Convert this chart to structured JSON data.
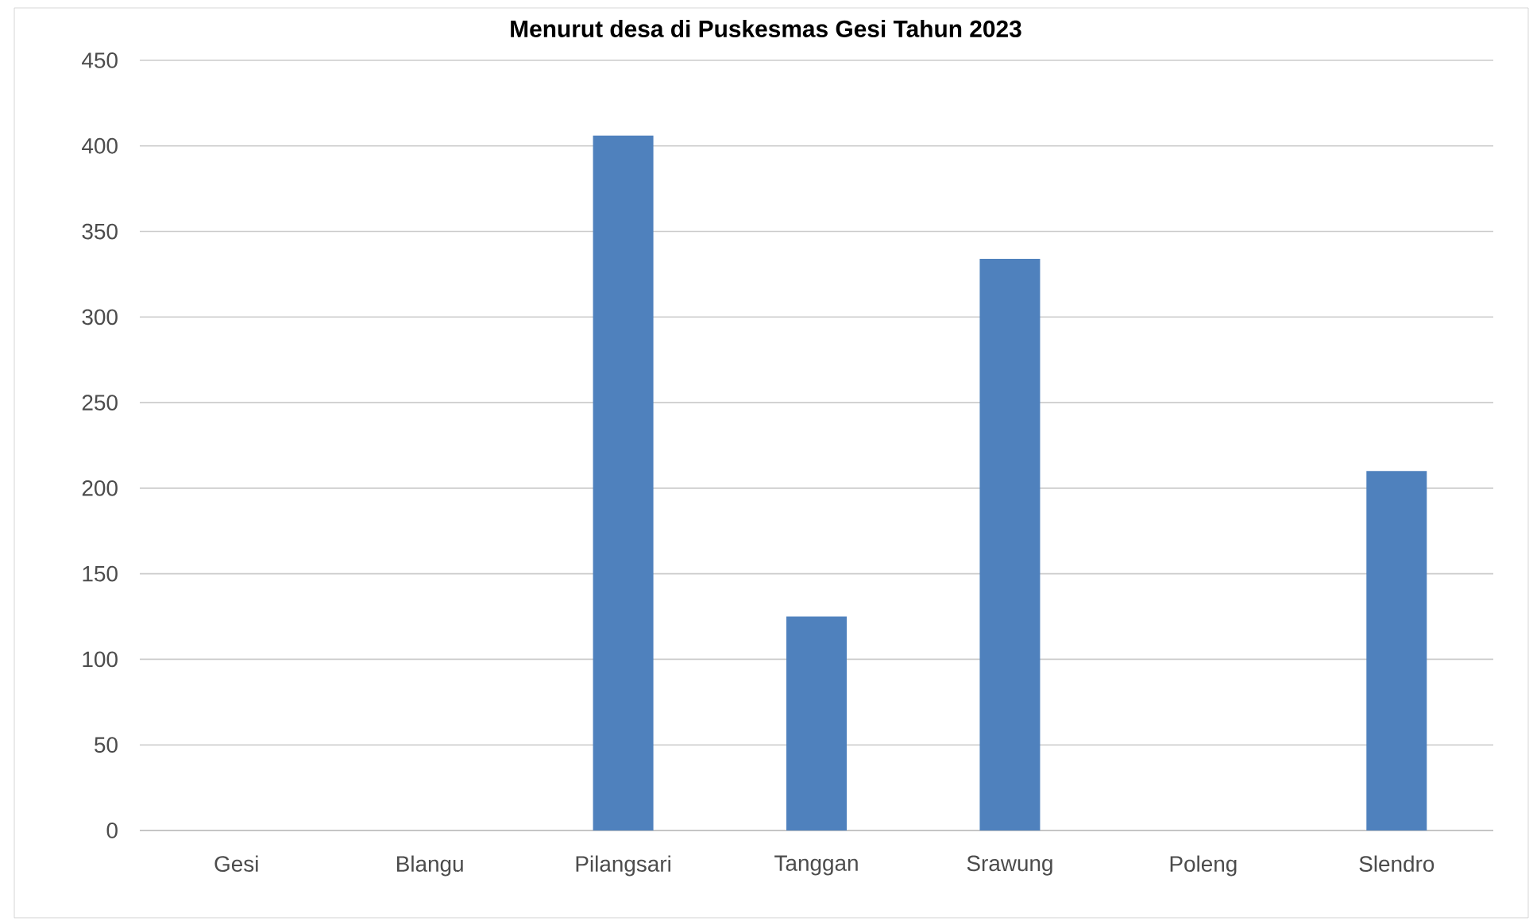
{
  "chart_data": {
    "type": "bar",
    "title": "Menurut desa di Puskesmas Gesi Tahun 2023",
    "categories": [
      "Gesi",
      "Blangu",
      "Pilangsari",
      "Tanggan",
      "Srawung",
      "Poleng",
      "Slendro"
    ],
    "values": [
      0,
      0,
      406,
      125,
      334,
      0,
      210
    ],
    "color": "#4f81bd",
    "ylim": [
      0,
      450
    ],
    "yticks": [
      0,
      50,
      100,
      150,
      200,
      250,
      300,
      350,
      400,
      450
    ],
    "grid": "y"
  }
}
